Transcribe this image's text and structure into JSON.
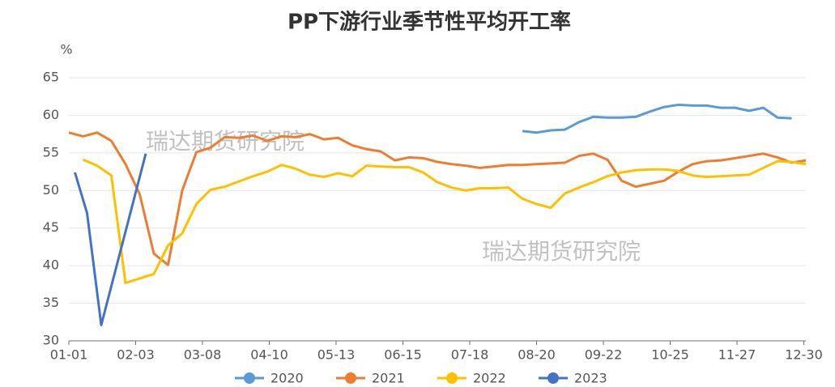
{
  "chart_data": {
    "type": "line",
    "title": "PP下游行业季节性平均开工率",
    "y_label": "%",
    "annotations": [
      "瑞达期货研究院",
      "瑞达期货研究院"
    ],
    "xlim": [
      1,
      365
    ],
    "xticks": [
      {
        "value": 1,
        "label": "01-01"
      },
      {
        "value": 34,
        "label": "02-03"
      },
      {
        "value": 67,
        "label": "03-08"
      },
      {
        "value": 100,
        "label": "04-10"
      },
      {
        "value": 133,
        "label": "05-13"
      },
      {
        "value": 166,
        "label": "06-15"
      },
      {
        "value": 199,
        "label": "07-18"
      },
      {
        "value": 232,
        "label": "08-20"
      },
      {
        "value": 265,
        "label": "09-22"
      },
      {
        "value": 298,
        "label": "10-25"
      },
      {
        "value": 331,
        "label": "11-27"
      },
      {
        "value": 364,
        "label": "12-30"
      }
    ],
    "ylim": [
      30,
      65
    ],
    "yticks": [
      30,
      35,
      40,
      45,
      50,
      55,
      60,
      65
    ],
    "grid": true,
    "legend": "bottom",
    "series": [
      {
        "name": "2020",
        "color": "#5b9bd5",
        "x": [
          225,
          232,
          239,
          246,
          253,
          260,
          267,
          274,
          281,
          288,
          295,
          302,
          309,
          316,
          323,
          330,
          337,
          344,
          351,
          358
        ],
        "values": [
          57.9,
          57.7,
          58,
          58.1,
          59.1,
          59.8,
          59.7,
          59.7,
          59.8,
          60.5,
          61.1,
          61.4,
          61.3,
          61.3,
          61,
          61,
          60.6,
          61,
          59.7,
          59.6
        ]
      },
      {
        "name": "2021",
        "color": "#ed7d31",
        "x": [
          1,
          8,
          15,
          22,
          29,
          36,
          43,
          50,
          57,
          64,
          71,
          78,
          85,
          92,
          99,
          106,
          113,
          120,
          127,
          134,
          141,
          148,
          155,
          162,
          169,
          176,
          183,
          190,
          197,
          204,
          211,
          218,
          225,
          232,
          239,
          246,
          253,
          260,
          267,
          274,
          281,
          288,
          295,
          302,
          309,
          316,
          323,
          330,
          337,
          344,
          351,
          358,
          365
        ],
        "values": [
          57.7,
          57.2,
          57.7,
          56.6,
          53.5,
          49.5,
          41.6,
          40.1,
          50,
          55.1,
          55.7,
          57.1,
          57,
          57.3,
          56.6,
          57.2,
          57.1,
          57.5,
          56.8,
          57,
          56,
          55.5,
          55.2,
          54,
          54.4,
          54.3,
          53.8,
          53.5,
          53.3,
          53,
          53.2,
          53.4,
          53.4,
          53.5,
          53.6,
          53.7,
          54.6,
          54.9,
          54.1,
          51.3,
          50.5,
          50.9,
          51.3,
          52.5,
          53.5,
          53.9,
          54,
          54.3,
          54.6,
          54.9,
          54.4,
          53.7,
          54
        ]
      },
      {
        "name": "2022",
        "color": "#ffc000",
        "x": [
          8,
          15,
          22,
          29,
          36,
          43,
          50,
          57,
          64,
          71,
          78,
          85,
          92,
          99,
          106,
          113,
          120,
          127,
          134,
          141,
          148,
          155,
          162,
          169,
          176,
          183,
          190,
          197,
          204,
          211,
          218,
          225,
          232,
          239,
          246,
          253,
          260,
          267,
          274,
          281,
          288,
          295,
          302,
          309,
          316,
          323,
          330,
          337,
          344,
          351,
          358,
          365
        ],
        "values": [
          54.1,
          53.3,
          52,
          37.7,
          38.3,
          38.9,
          42.7,
          44.3,
          48.2,
          50.1,
          50.5,
          51.2,
          51.9,
          52.5,
          53.4,
          52.9,
          52.1,
          51.8,
          52.3,
          51.9,
          53.3,
          53.2,
          53.1,
          53.1,
          52.4,
          51.1,
          50.4,
          50,
          50.3,
          50.3,
          50.4,
          48.9,
          48.2,
          47.7,
          49.6,
          50.4,
          51.1,
          51.9,
          52.4,
          52.7,
          52.8,
          52.8,
          52.6,
          52,
          51.8,
          51.9,
          52,
          52.1,
          53,
          53.9,
          53.8,
          53.5
        ]
      },
      {
        "name": "2023",
        "color": "#4472c4",
        "x": [
          4,
          10,
          17,
          39
        ],
        "values": [
          52.4,
          47,
          32.1,
          54.9
        ]
      }
    ]
  }
}
